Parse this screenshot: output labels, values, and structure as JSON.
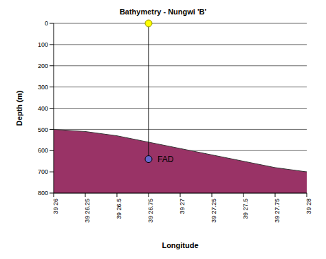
{
  "chart_data": {
    "type": "area",
    "title": "Bathymetry - Nungwi 'B'",
    "x_label": "Longitude",
    "y_label": "Depth (m)",
    "categories": [
      "39 26",
      "39 26.25",
      "39 26.5",
      "39 26.75",
      "39 27",
      "39 27.25",
      "39 27.5",
      "39 27.75",
      "39 28"
    ],
    "series": [
      {
        "name": "Depth",
        "color": "#993366",
        "values": [
          500,
          510,
          530,
          560,
          590,
          620,
          650,
          680,
          700
        ]
      }
    ],
    "ylim": [
      0,
      800
    ],
    "yticks": [
      0,
      100,
      200,
      300,
      400,
      500,
      600,
      700,
      800
    ],
    "grid": true,
    "annotations": [
      {
        "text": "FAD",
        "x": "39 26.75",
        "y": 640
      }
    ]
  }
}
